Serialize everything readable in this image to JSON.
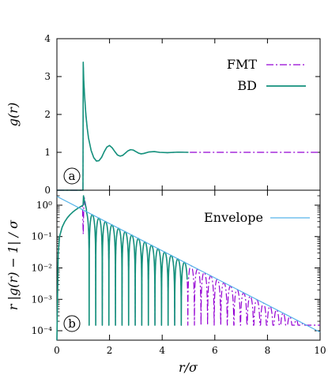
{
  "chart_data": [
    {
      "panel": "a",
      "type": "line",
      "title": "",
      "xlabel": "",
      "ylabel": "g(r)",
      "xlim": [
        0,
        10
      ],
      "ylim": [
        0,
        4
      ],
      "x_ticks": [],
      "y_ticks": [
        0,
        1,
        2,
        3,
        4
      ],
      "y_tick_labels": [
        "0",
        "1",
        "2",
        "3",
        "4"
      ],
      "legend_position": "top-right",
      "grid": false,
      "series": [
        {
          "name": "FMT",
          "color": "#9400d3",
          "style": "dash-dot",
          "x": [
            0,
            0.99,
            1.0,
            1.02,
            1.05,
            1.1,
            1.15,
            1.2,
            1.3,
            1.4,
            1.5,
            1.6,
            1.7,
            1.8,
            1.9,
            2.0,
            2.1,
            2.2,
            2.3,
            2.4,
            2.5,
            2.6,
            2.7,
            2.8,
            2.9,
            3.0,
            3.1,
            3.2,
            3.3,
            3.5,
            3.7,
            3.9,
            4.2,
            4.6,
            5.0,
            6.0,
            7.0,
            8.0,
            9.0,
            10.0
          ],
          "y": [
            0,
            0,
            3.35,
            2.9,
            2.5,
            2.0,
            1.65,
            1.38,
            1.05,
            0.86,
            0.77,
            0.78,
            0.87,
            1.02,
            1.14,
            1.18,
            1.12,
            1.02,
            0.93,
            0.9,
            0.92,
            0.98,
            1.04,
            1.07,
            1.06,
            1.02,
            0.98,
            0.96,
            0.97,
            1.01,
            1.02,
            1.0,
            0.99,
            1.005,
            1.0,
            1.0,
            1.0,
            1.0,
            1.0,
            1.0
          ]
        },
        {
          "name": "BD",
          "color": "#13917b",
          "style": "solid",
          "x": [
            0,
            0.99,
            1.0,
            1.02,
            1.05,
            1.1,
            1.15,
            1.2,
            1.3,
            1.4,
            1.5,
            1.6,
            1.7,
            1.8,
            1.9,
            2.0,
            2.1,
            2.2,
            2.3,
            2.4,
            2.5,
            2.6,
            2.7,
            2.8,
            2.9,
            3.0,
            3.1,
            3.2,
            3.3,
            3.5,
            3.7,
            3.9,
            4.2,
            4.6,
            5.0
          ],
          "y": [
            0,
            0,
            3.38,
            2.9,
            2.5,
            2.0,
            1.65,
            1.38,
            1.05,
            0.86,
            0.77,
            0.78,
            0.87,
            1.02,
            1.14,
            1.18,
            1.12,
            1.02,
            0.93,
            0.9,
            0.92,
            0.98,
            1.04,
            1.07,
            1.06,
            1.02,
            0.98,
            0.96,
            0.97,
            1.01,
            1.02,
            1.0,
            0.99,
            1.005,
            1.0
          ]
        }
      ]
    },
    {
      "panel": "b",
      "type": "line",
      "title": "",
      "xlabel": "r/σ",
      "ylabel": "r |g(r) − 1| / σ",
      "xlim": [
        0,
        10
      ],
      "ylim": [
        5e-05,
        3
      ],
      "yscale": "log",
      "x_ticks": [
        0,
        2,
        4,
        6,
        8,
        10
      ],
      "x_tick_labels": [
        "0",
        "2",
        "4",
        "6",
        "8",
        "10"
      ],
      "y_ticks": [
        0.0001,
        0.001,
        0.01,
        0.1,
        1
      ],
      "y_tick_labels": [
        "10⁻⁴",
        "10⁻³",
        "10⁻²",
        "10⁻¹",
        "10⁰"
      ],
      "legend_position": "top-right",
      "grid": false,
      "envelope": {
        "name": "Envelope",
        "color": "#56b4e9",
        "x": [
          0,
          10
        ],
        "y": [
          1.9,
          9e-05
        ]
      },
      "decay": {
        "amplitude": 1.9,
        "rate": 0.996,
        "wavelength": 0.5,
        "phase": 0.85,
        "floor": 0.00015,
        "bd_noise_from": 4.9
      },
      "series": [
        {
          "name": "FMT",
          "color": "#9400d3",
          "style": "dash-dot",
          "core_x": [
            0,
            0.05,
            0.1,
            0.2,
            0.3,
            0.4,
            0.5,
            0.6,
            0.7,
            0.8,
            0.9,
            0.97,
            1.0,
            1.03,
            1.07,
            1.12
          ],
          "core_y": [
            0,
            0.03,
            0.1,
            0.2,
            0.3,
            0.4,
            0.5,
            0.6,
            0.7,
            0.8,
            0.9,
            0.97,
            0.12,
            1.9,
            1.3,
            0.75
          ]
        },
        {
          "name": "BD",
          "color": "#13917b",
          "style": "solid",
          "core_x": [
            0,
            0.05,
            0.1,
            0.2,
            0.3,
            0.4,
            0.5,
            0.6,
            0.7,
            0.8,
            0.9,
            0.97,
            0.995,
            1.01,
            1.05,
            1.12
          ],
          "core_y": [
            0,
            0.03,
            0.1,
            0.2,
            0.3,
            0.4,
            0.5,
            0.6,
            0.7,
            0.8,
            0.9,
            0.97,
            1.0,
            2.0,
            1.3,
            0.75
          ]
        }
      ]
    }
  ],
  "panel_tags": {
    "a": "a",
    "b": "b"
  },
  "legend_a": {
    "fmt": "FMT",
    "bd": "BD"
  },
  "legend_b": {
    "envelope": "Envelope"
  }
}
